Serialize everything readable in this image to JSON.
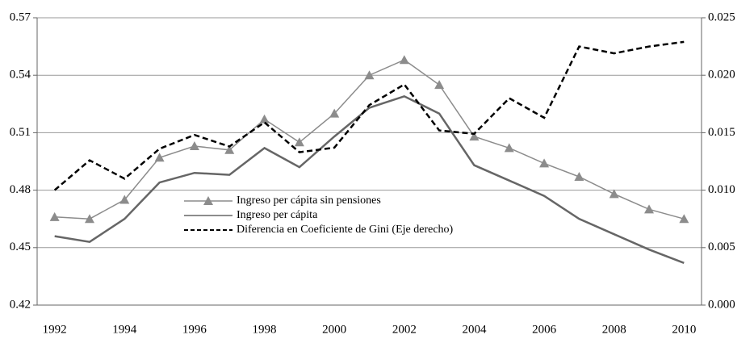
{
  "chart_data": {
    "type": "line",
    "categories": [
      "1992",
      null,
      "1994",
      null,
      "1996",
      null,
      "1998",
      null,
      "2000",
      null,
      "2002",
      null,
      "2004",
      null,
      "2006",
      null,
      "2008",
      null,
      "2010"
    ],
    "series": [
      {
        "name": "Ingreso per cápita sin pensiones",
        "color": "#8c8c8c",
        "marker": "triangle",
        "values": [
          0.466,
          0.465,
          0.475,
          0.497,
          0.503,
          0.501,
          0.517,
          0.505,
          0.52,
          0.54,
          0.548,
          0.535,
          0.508,
          0.502,
          0.494,
          0.487,
          0.478,
          0.47,
          0.465
        ]
      },
      {
        "name": "Ingreso per cápita",
        "color": "#666666",
        "values": [
          0.456,
          0.453,
          0.465,
          0.484,
          0.489,
          0.488,
          0.502,
          0.492,
          0.508,
          0.523,
          0.529,
          0.52,
          0.493,
          0.485,
          0.477,
          0.465,
          0.457,
          0.449,
          0.442
        ]
      },
      {
        "name": "Diferencia en Coeficiente de Gini (Eje derecho)",
        "color": "#000000",
        "dashed": true,
        "axis": "y2",
        "values": [
          0.01,
          0.0126,
          0.011,
          0.0136,
          0.0148,
          0.0138,
          0.0159,
          0.0133,
          0.0137,
          0.0174,
          0.0192,
          0.0152,
          0.0149,
          0.018,
          0.0163,
          0.0225,
          0.0219,
          0.0225,
          0.0229
        ]
      }
    ],
    "ylim": [
      0.42,
      0.57
    ],
    "yticks": [
      0.42,
      0.45,
      0.48,
      0.51,
      0.54,
      0.57
    ],
    "y2lim": [
      0,
      0.025
    ],
    "y2ticks": [
      {
        "value": 0,
        "label": "0.000"
      },
      0.005,
      {
        "value": 0.01,
        "label": "0.010"
      },
      0.015,
      {
        "value": 0.02,
        "label": "0.020"
      },
      0.025
    ],
    "grid": true,
    "legend": "lower left"
  }
}
